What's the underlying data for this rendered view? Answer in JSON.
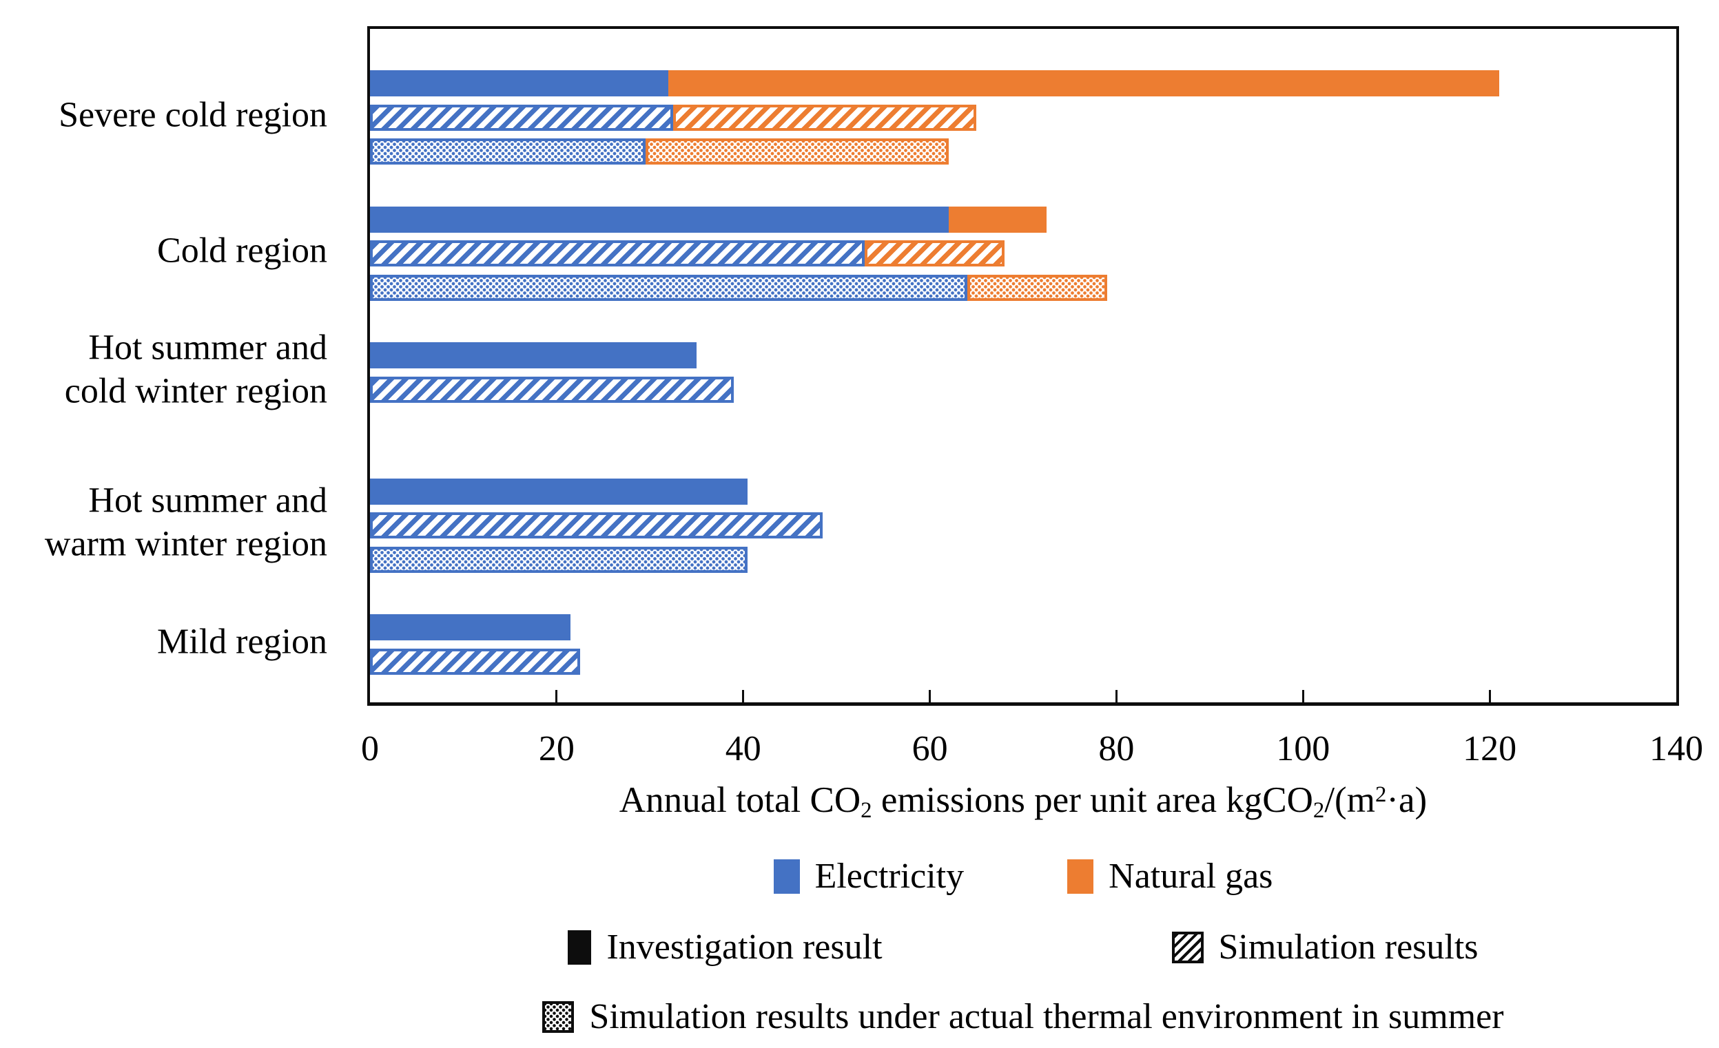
{
  "chart_data": {
    "type": "bar",
    "orientation": "horizontal",
    "stacked": true,
    "grid": false,
    "xlim": [
      0,
      140
    ],
    "xtick_step": 20,
    "xticks": [
      "0",
      "20",
      "40",
      "60",
      "80",
      "100",
      "120",
      "140"
    ],
    "x_axis_title_parts": [
      {
        "text": "Annual total CO"
      },
      {
        "text": "2",
        "style": "sub"
      },
      {
        "text": " emissions per unit area kgCO"
      },
      {
        "text": "2",
        "style": "sub"
      },
      {
        "text": "/(m",
        "style": ""
      },
      {
        "text": "2",
        "style": "sup"
      },
      {
        "text": "·a)"
      }
    ],
    "series_colors": {
      "electricity": "#4472C4",
      "natural_gas": "#ED7D31"
    },
    "groups": [
      {
        "id": "severe-cold",
        "label_lines": [
          "Severe cold region"
        ],
        "bars": [
          {
            "key": "investigation",
            "pattern": "solid",
            "electricity": 32,
            "natural_gas": 89,
            "total": 121
          },
          {
            "key": "simulation",
            "pattern": "hatch",
            "electricity": 32.5,
            "natural_gas": 32.5,
            "total": 65
          },
          {
            "key": "simulation-actual-summer",
            "pattern": "dots",
            "electricity": 29.5,
            "natural_gas": 32.5,
            "total": 62
          }
        ]
      },
      {
        "id": "cold",
        "label_lines": [
          "Cold region"
        ],
        "bars": [
          {
            "key": "investigation",
            "pattern": "solid",
            "electricity": 62,
            "natural_gas": 10.5,
            "total": 72.5
          },
          {
            "key": "simulation",
            "pattern": "hatch",
            "electricity": 53,
            "natural_gas": 15,
            "total": 68
          },
          {
            "key": "simulation-actual-summer",
            "pattern": "dots",
            "electricity": 64,
            "natural_gas": 15,
            "total": 79
          }
        ]
      },
      {
        "id": "hot-summer-cold-winter",
        "label_lines": [
          "Hot summer and",
          "cold winter region"
        ],
        "bars": [
          {
            "key": "investigation",
            "pattern": "solid",
            "electricity": 35,
            "natural_gas": 0,
            "total": 35
          },
          {
            "key": "simulation",
            "pattern": "hatch",
            "electricity": 39,
            "natural_gas": 0,
            "total": 39
          }
        ]
      },
      {
        "id": "hot-summer-warm-winter",
        "label_lines": [
          "Hot summer and",
          "warm winter region"
        ],
        "bars": [
          {
            "key": "investigation",
            "pattern": "solid",
            "electricity": 40.5,
            "natural_gas": 0,
            "total": 40.5
          },
          {
            "key": "simulation",
            "pattern": "hatch",
            "electricity": 48.5,
            "natural_gas": 0,
            "total": 48.5
          },
          {
            "key": "simulation-actual-summer",
            "pattern": "dots",
            "electricity": 40.5,
            "natural_gas": 0,
            "total": 40.5
          }
        ]
      },
      {
        "id": "mild",
        "label_lines": [
          "Mild region"
        ],
        "bars": [
          {
            "key": "investigation",
            "pattern": "solid",
            "electricity": 21.5,
            "natural_gas": 0,
            "total": 21.5
          },
          {
            "key": "simulation",
            "pattern": "hatch",
            "electricity": 22.5,
            "natural_gas": 0,
            "total": 22.5
          }
        ]
      }
    ],
    "legend": {
      "electricity": "Electricity",
      "natural_gas": "Natural gas",
      "investigation": "Investigation result",
      "simulation": "Simulation results",
      "simulation_actual": "Simulation results under actual thermal environment in summer"
    }
  }
}
